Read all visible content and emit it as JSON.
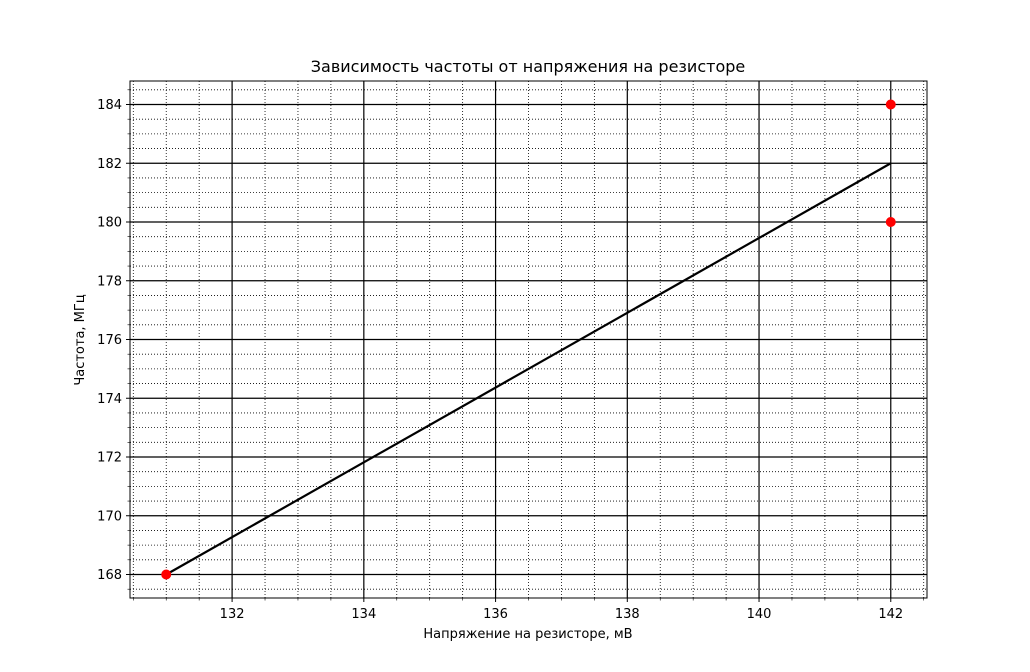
{
  "chart_data": {
    "type": "line",
    "title": "Зависимость частоты от напряжения на резисторе",
    "xlabel": "Напряжение на резисторе, мВ",
    "ylabel": "Частота, МГц",
    "xlim": [
      130.45,
      142.55
    ],
    "ylim": [
      167.2,
      184.8
    ],
    "x_major_ticks": [
      132,
      134,
      136,
      138,
      140,
      142
    ],
    "x_tick_labels": [
      "132",
      "134",
      "136",
      "138",
      "140",
      "142"
    ],
    "y_major_ticks": [
      168,
      170,
      172,
      174,
      176,
      178,
      180,
      182,
      184
    ],
    "y_tick_labels": [
      "168",
      "170",
      "172",
      "174",
      "176",
      "178",
      "180",
      "182",
      "184"
    ],
    "x_minor_step": 0.5,
    "y_minor_step": 0.5,
    "grid": {
      "major": "solid",
      "minor": "dotted"
    },
    "series": [
      {
        "kind": "line",
        "color": "#000000",
        "x": [
          131,
          142
        ],
        "y": [
          168,
          182
        ]
      },
      {
        "kind": "scatter",
        "color": "#ff0000",
        "x": [
          131,
          142,
          142
        ],
        "y": [
          168,
          184,
          180
        ]
      }
    ]
  }
}
